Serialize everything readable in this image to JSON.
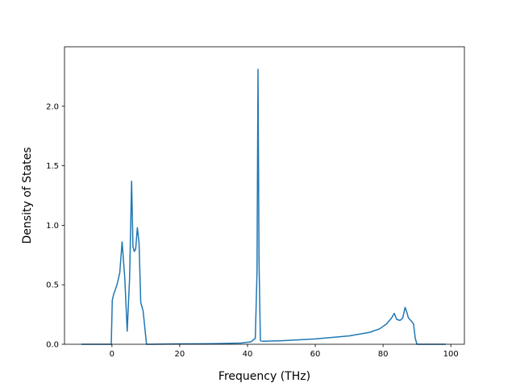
{
  "chart_data": {
    "type": "line",
    "title": "",
    "xlabel": "Frequency (THz)",
    "ylabel": "Density of States",
    "xlim": [
      -14,
      104
    ],
    "ylim": [
      0,
      2.5
    ],
    "grid": false,
    "x_ticks": [
      0,
      20,
      40,
      60,
      80,
      100
    ],
    "x_tick_labels": [
      "0",
      "20",
      "40",
      "60",
      "80",
      "100"
    ],
    "y_ticks": [
      0.0,
      0.5,
      1.0,
      1.5,
      2.0
    ],
    "y_tick_labels": [
      "0.0",
      "0.5",
      "1.0",
      "1.5",
      "2.0"
    ],
    "series": [
      {
        "color": "#1f77b4",
        "x": [
          -9.0,
          -0.2,
          0.1,
          0.5,
          1.5,
          2.3,
          3.0,
          3.8,
          4.5,
          5.2,
          5.8,
          6.2,
          6.6,
          7.0,
          7.5,
          8.0,
          8.5,
          9.2,
          10.2,
          10.8,
          11.5,
          20,
          30,
          38,
          41,
          42.3,
          42.8,
          43.1,
          43.4,
          43.8,
          44.5,
          50,
          60,
          70,
          76,
          79,
          81,
          82.5,
          83.3,
          84.0,
          85.0,
          85.8,
          86.5,
          87.0,
          87.5,
          88.2,
          89.0,
          89.5,
          90.0,
          95,
          98.5
        ],
        "y": [
          0.0,
          0.0,
          0.37,
          0.42,
          0.5,
          0.6,
          0.86,
          0.55,
          0.11,
          0.55,
          1.37,
          0.82,
          0.78,
          0.8,
          0.98,
          0.85,
          0.35,
          0.28,
          0.0,
          0.0,
          0.0,
          0.003,
          0.005,
          0.01,
          0.02,
          0.05,
          0.6,
          2.31,
          0.7,
          0.03,
          0.025,
          0.03,
          0.045,
          0.07,
          0.1,
          0.13,
          0.17,
          0.22,
          0.26,
          0.21,
          0.2,
          0.22,
          0.31,
          0.27,
          0.22,
          0.2,
          0.17,
          0.05,
          0.0,
          0.0,
          0.0
        ]
      }
    ]
  }
}
